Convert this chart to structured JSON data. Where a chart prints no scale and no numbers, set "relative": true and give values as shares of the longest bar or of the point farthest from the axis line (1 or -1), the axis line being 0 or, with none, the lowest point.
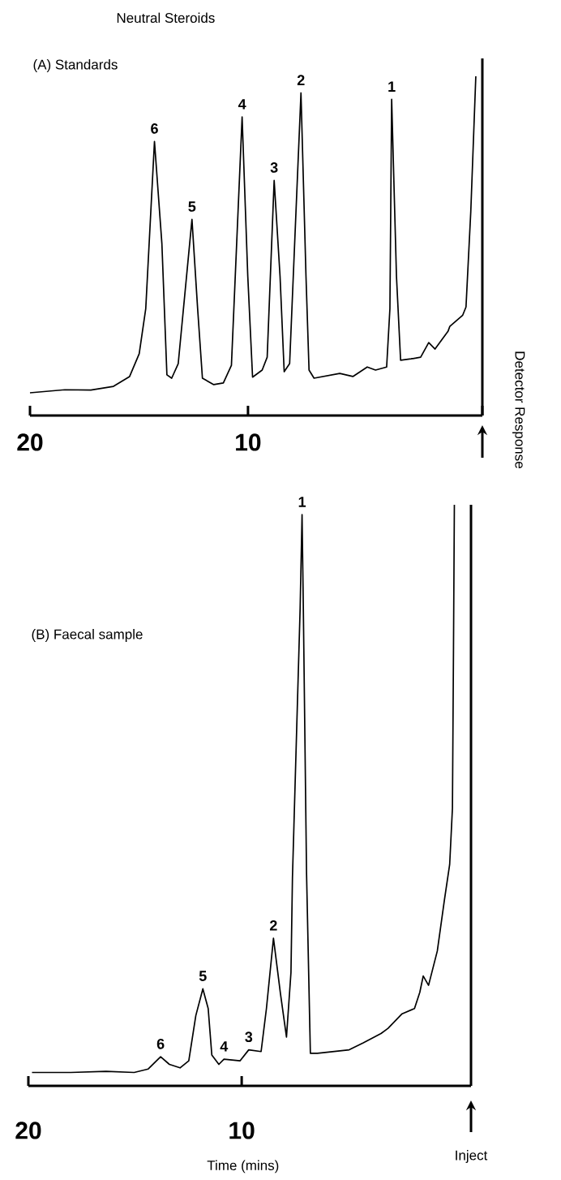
{
  "chart_data": [
    {
      "type": "line",
      "title": "Neutral Steroids",
      "subtitle": "(A) Standards",
      "ylabel": "Detector Response",
      "relative": true,
      "xlim": [
        20,
        -0.75
      ],
      "xticks": [
        20,
        10,
        {
          "value": -0.75,
          "label": null
        }
      ],
      "x": [
        20.0,
        18.4,
        17.21,
        16.17,
        15.43,
        14.99,
        14.69,
        14.29,
        13.95,
        13.72,
        13.5,
        13.2,
        12.57,
        12.31,
        12.09,
        11.57,
        11.13,
        10.76,
        10.27,
        10.01,
        9.79,
        9.35,
        9.12,
        8.8,
        8.53,
        8.34,
        8.09,
        7.86,
        7.57,
        7.34,
        7.2,
        6.97,
        5.79,
        5.19,
        4.53,
        4.15,
        3.64,
        3.49,
        3.41,
        3.19,
        3.0,
        2.52,
        2.08,
        1.71,
        1.42,
        0.82,
        0.74,
        0.15,
        0.0,
        -0.22,
        -0.45
      ],
      "series": [
        {
          "color": "#000000",
          "values": [
            0.067,
            0.076,
            0.075,
            0.086,
            0.115,
            0.182,
            0.315,
            0.808,
            0.507,
            0.12,
            0.11,
            0.153,
            0.578,
            0.315,
            0.11,
            0.091,
            0.096,
            0.148,
            0.88,
            0.411,
            0.113,
            0.134,
            0.172,
            0.693,
            0.411,
            0.129,
            0.153,
            0.507,
            0.951,
            0.411,
            0.134,
            0.11,
            0.124,
            0.115,
            0.143,
            0.134,
            0.143,
            0.315,
            0.932,
            0.411,
            0.163,
            0.167,
            0.172,
            0.215,
            0.196,
            0.249,
            0.263,
            0.296,
            0.32,
            0.602,
            1.0
          ]
        }
      ],
      "annotations": [
        {
          "text": "6",
          "x": 14.29,
          "y": 0.808
        },
        {
          "text": "5",
          "x": 12.57,
          "y": 0.578
        },
        {
          "text": "4",
          "x": 10.27,
          "y": 0.88
        },
        {
          "text": "3",
          "x": 8.8,
          "y": 0.693
        },
        {
          "text": "2",
          "x": 7.57,
          "y": 0.951
        },
        {
          "text": "1",
          "x": 3.41,
          "y": 0.932
        }
      ]
    },
    {
      "type": "line",
      "subtitle": "(B) Faecal sample",
      "xlabel": "Time (mins)",
      "relative": true,
      "xlim": [
        20,
        -0.75
      ],
      "xticks": [
        20,
        10
      ],
      "x": [
        19.83,
        18.02,
        16.36,
        15.04,
        14.38,
        13.8,
        13.39,
        12.89,
        12.48,
        12.15,
        11.82,
        11.57,
        11.4,
        11.07,
        10.83,
        10.08,
        9.67,
        9.09,
        8.84,
        8.51,
        8.18,
        7.9,
        7.69,
        7.62,
        7.26,
        7.17,
        7.11,
        6.96,
        6.78,
        6.45,
        4.96,
        4.3,
        3.47,
        3.14,
        2.48,
        1.9,
        1.65,
        1.49,
        1.24,
        0.83,
        0.5,
        0.25,
        0.12,
        0.07,
        0.03
      ],
      "series": [
        {
          "color": "#000000",
          "values": [
            0.023,
            0.023,
            0.025,
            0.023,
            0.029,
            0.05,
            0.037,
            0.031,
            0.043,
            0.121,
            0.167,
            0.133,
            0.053,
            0.037,
            0.046,
            0.043,
            0.062,
            0.059,
            0.133,
            0.254,
            0.158,
            0.084,
            0.195,
            0.359,
            0.822,
            0.983,
            0.822,
            0.367,
            0.056,
            0.056,
            0.062,
            0.074,
            0.09,
            0.099,
            0.124,
            0.133,
            0.161,
            0.189,
            0.173,
            0.232,
            0.319,
            0.381,
            0.478,
            0.756,
            1.0
          ]
        }
      ],
      "annotations": [
        {
          "text": "6",
          "x": 13.8,
          "y": 0.05
        },
        {
          "text": "5",
          "x": 11.82,
          "y": 0.167
        },
        {
          "text": "4",
          "x": 10.83,
          "y": 0.046
        },
        {
          "text": "3",
          "x": 9.67,
          "y": 0.062
        },
        {
          "text": "2",
          "x": 8.51,
          "y": 0.254
        },
        {
          "text": "1",
          "x": 7.17,
          "y": 0.983
        },
        "Inject"
      ]
    }
  ]
}
